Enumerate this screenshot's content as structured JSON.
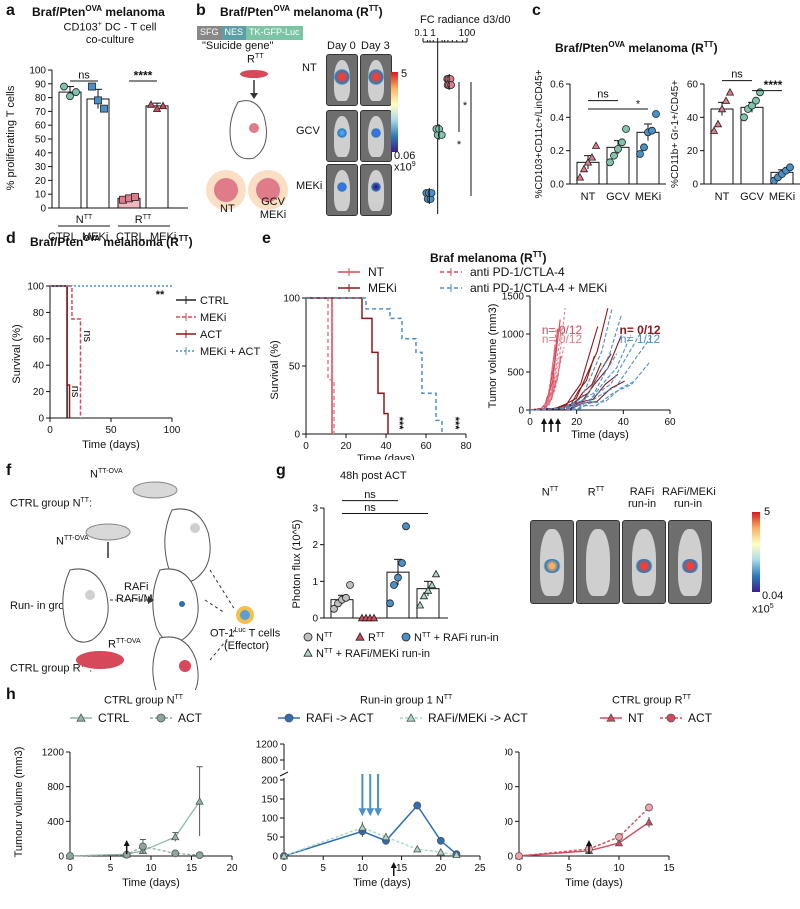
{
  "panel_labels": [
    "a",
    "b",
    "c",
    "d",
    "e",
    "f",
    "g",
    "h"
  ],
  "panel_a": {
    "title": "Braf/Pten",
    "title_sup": "OVA",
    "title_suffix": " melanoma",
    "subtitle_pre": "CD103",
    "subtitle_sup": "+",
    "subtitle_post": " DC - T cell",
    "subtitle2": "co-culture",
    "sig1": "ns",
    "sig2": "****",
    "group1": "N",
    "group1_sup": "TT",
    "group2": "R",
    "group2_sup": "TT",
    "xlabels": [
      "CTRL",
      "MEKi",
      "CTRL",
      "MEKi"
    ]
  },
  "panel_b": {
    "title": "Braf/Pten",
    "title_sup": "OVA",
    "title_suffix": " melanoma (R",
    "title_sup2": "TT",
    "title_end": ")",
    "construct": [
      "SFG",
      "NES",
      "TK-GFP-Luc"
    ],
    "suicide": "\"Suicide gene\"",
    "rtt": "R",
    "rtt_sup": "TT",
    "day0": "Day 0",
    "day3": "Day 3",
    "rows": [
      "NT",
      "GCV",
      "MEKi"
    ],
    "cbar_max": "5",
    "cbar_min": "0.06",
    "cbar_unit": "x10",
    "cbar_unit_sup": "9",
    "fc_label": "FC radiance d3/d0",
    "fc_ticks": [
      "0.1",
      "1",
      "100"
    ],
    "sig": [
      "*",
      "*"
    ],
    "mice_nt": "NT",
    "mice_gcv": "GCV",
    "mice_meki": "MEKi"
  },
  "panel_d": {
    "title": "Braf/Pten",
    "title_sup": "OVA",
    "title_suffix": " melanoma (R",
    "title_sup2": "TT",
    "title_end": ")",
    "sig": "**",
    "ns1": "ns",
    "ns2": "ns"
  },
  "panel_e": {
    "title": "Braf melanoma (R",
    "title_sup": "TT",
    "title_end": ")",
    "legend": [
      "NT",
      "anti PD-1/CTLA-4",
      "MEKi",
      "anti PD-1/CTLA-4 + MEKi"
    ],
    "sig": [
      "***",
      "***"
    ],
    "counts": [
      "n= 0/12",
      "n= 0/12",
      "n= 0/12",
      "n= 1/12"
    ]
  },
  "panel_f": {
    "ctrl_ntt": "CTRL group N",
    "ctrl_ntt_sup": "TT",
    "ctrl_ntt_end": ":",
    "ntt_ova": "N",
    "ntt_ova_sup": "TT-OVA",
    "runin": "Run- in group:",
    "rafi": "RAFi",
    "rafi_meki": "RAFi/MEKi",
    "otl_pre": "OT-1",
    "otl_sup": "Luc",
    "otl_post": " T cells",
    "effector": "(Effector)",
    "rtt_ova": "R",
    "rtt_ova_sup": "TT-OVA",
    "ctrl_rtt": "CTRL group R",
    "ctrl_rtt_sup": "TT",
    "ctrl_rtt_end": ":"
  },
  "panel_g": {
    "title": "48h post ACT",
    "sig": [
      "ns",
      "ns"
    ],
    "legend": [
      "N",
      "R",
      "N",
      "N"
    ],
    "legend_sup": [
      "TT",
      "TT",
      "TT",
      "TT"
    ],
    "legend_suffix": [
      "",
      "",
      " + RAFi run-in",
      " + RAFi/MEKi run-in"
    ],
    "img_labels": [
      "N",
      "R",
      "RAFi",
      "RAFi/MEKi"
    ],
    "img_labels_sup": [
      "TT",
      "TT",
      "",
      ""
    ],
    "img_labels2": [
      "",
      "",
      "run-in",
      "run-in"
    ],
    "cbar_max": "5",
    "cbar_min": "0.04",
    "cbar_unit": "x10",
    "cbar_unit_sup": "5"
  },
  "panel_h": {
    "titles": [
      "CTRL group N",
      "Run-in group 1 N",
      "CTRL group R"
    ],
    "titles_sup": [
      "TT",
      "TT",
      "TT"
    ],
    "legend1": [
      "CTRL",
      "ACT"
    ],
    "legend2": [
      "RAFi -> ACT",
      "RAFi/MEKi -> ACT"
    ],
    "legend3": [
      "NT",
      "ACT"
    ]
  },
  "colors": {
    "teal": "#5ba3a0",
    "pink": "#e07b8a",
    "red": "#d6485a",
    "darkred": "#8b1a1a",
    "blue": "#2f6db5",
    "lightblue": "#4a90c8",
    "gray": "#b0b0b0",
    "green": "#7fb8a4"
  },
  "chart_data": [
    {
      "id": "a",
      "type": "bar",
      "title": "Braf/PtenOVA melanoma",
      "ylabel": "% proliferating T cells",
      "ylim": [
        0,
        100
      ],
      "yticks": [
        0,
        10,
        20,
        30,
        40,
        50,
        60,
        70,
        80,
        90,
        100
      ],
      "categories": [
        "NTT CTRL",
        "NTT MEKi",
        "RTT CTRL",
        "RTT MEKi"
      ],
      "values": [
        84,
        79,
        7,
        74
      ],
      "errors": [
        4,
        7,
        1,
        2
      ],
      "points": [
        [
          88,
          81,
          84
        ],
        [
          88,
          78,
          72
        ],
        [
          6,
          7,
          8
        ],
        [
          75,
          72,
          74
        ]
      ]
    },
    {
      "id": "b",
      "type": "scatter",
      "xlabel": "FC radiance d3/d0",
      "xscale": "log",
      "xticks": [
        0.1,
        1,
        100
      ],
      "categories": [
        "NT",
        "GCV",
        "MEKi"
      ],
      "points": [
        [
          4.5,
          4.8,
          5.5,
          6,
          7.4,
          8.2
        ],
        [
          0.82,
          1.0,
          1.25,
          1.9
        ],
        [
          0.17,
          0.21,
          0.25,
          0.33,
          0.38
        ]
      ]
    },
    {
      "id": "c1",
      "type": "bar",
      "title": "Braf/PtenOVA melanoma (RTT)",
      "ylabel": "%CD103+CD11c+/LinCD45+",
      "ylim": [
        0,
        0.6
      ],
      "yticks": [
        0.0,
        0.2,
        0.4,
        0.6
      ],
      "categories": [
        "NT",
        "GCV",
        "MEKi"
      ],
      "values": [
        0.13,
        0.22,
        0.31
      ],
      "errors": [
        0.04,
        0.04,
        0.05
      ],
      "points": [
        [
          0.04,
          0.09,
          0.13,
          0.16,
          0.23
        ],
        [
          0.13,
          0.17,
          0.21,
          0.25,
          0.33
        ],
        [
          0.18,
          0.22,
          0.31,
          0.32,
          0.42
        ]
      ],
      "sig": [
        "ns",
        "*"
      ]
    },
    {
      "id": "c2",
      "type": "bar",
      "ylabel": "%CD11b+ Gr-1+/CD45+",
      "ylim": [
        0,
        60
      ],
      "yticks": [
        0,
        20,
        40,
        60
      ],
      "categories": [
        "NT",
        "GCV",
        "MEKi"
      ],
      "values": [
        45,
        46,
        7
      ],
      "errors": [
        4,
        3,
        1.5
      ],
      "points": [
        [
          32,
          36,
          45,
          50,
          55
        ],
        [
          40,
          45,
          47,
          50,
          55
        ],
        [
          2,
          4,
          6,
          8,
          10
        ]
      ],
      "sig": [
        "ns",
        "****"
      ]
    },
    {
      "id": "d",
      "type": "line",
      "xlabel": "Time (days)",
      "ylabel": "Survival (%)",
      "xlim": [
        0,
        100
      ],
      "ylim": [
        0,
        100
      ],
      "xticks": [
        0,
        50,
        100
      ],
      "yticks": [
        0,
        20,
        40,
        60,
        80,
        100
      ],
      "series": [
        {
          "name": "CTRL",
          "steps": [
            [
              0,
              100
            ],
            [
              14,
              100
            ],
            [
              14,
              0
            ]
          ]
        },
        {
          "name": "MEKi",
          "steps": [
            [
              0,
              100
            ],
            [
              18,
              100
            ],
            [
              18,
              75
            ],
            [
              25,
              75
            ],
            [
              25,
              0
            ]
          ]
        },
        {
          "name": "ACT",
          "steps": [
            [
              0,
              100
            ],
            [
              14,
              100
            ],
            [
              14,
              25
            ],
            [
              16,
              25
            ],
            [
              16,
              0
            ]
          ]
        },
        {
          "name": "MEKi + ACT",
          "steps": [
            [
              0,
              100
            ],
            [
              100,
              100
            ]
          ]
        }
      ]
    },
    {
      "id": "e1",
      "type": "line",
      "xlabel": "Time (days)",
      "ylabel": "Survival (%)",
      "xlim": [
        0,
        80
      ],
      "ylim": [
        0,
        100
      ],
      "xticks": [
        0,
        20,
        40,
        60,
        80
      ],
      "yticks": [
        0,
        50,
        100
      ],
      "series": [
        {
          "name": "NT",
          "steps": [
            [
              0,
              100
            ],
            [
              13,
              100
            ],
            [
              13,
              0
            ]
          ]
        },
        {
          "name": "anti PD-1/CTLA-4",
          "steps": [
            [
              0,
              100
            ],
            [
              11,
              100
            ],
            [
              11,
              40
            ],
            [
              14,
              40
            ],
            [
              14,
              0
            ]
          ]
        },
        {
          "name": "MEKi",
          "steps": [
            [
              0,
              100
            ],
            [
              28,
              100
            ],
            [
              28,
              85
            ],
            [
              33,
              85
            ],
            [
              33,
              60
            ],
            [
              36,
              60
            ],
            [
              36,
              30
            ],
            [
              39,
              30
            ],
            [
              39,
              15
            ],
            [
              41,
              15
            ],
            [
              41,
              0
            ]
          ]
        },
        {
          "name": "anti PD-1/CTLA-4 + MEKi",
          "steps": [
            [
              0,
              100
            ],
            [
              30,
              100
            ],
            [
              30,
              92
            ],
            [
              42,
              92
            ],
            [
              42,
              85
            ],
            [
              48,
              85
            ],
            [
              48,
              70
            ],
            [
              55,
              70
            ],
            [
              55,
              60
            ],
            [
              58,
              60
            ],
            [
              58,
              30
            ],
            [
              65,
              30
            ],
            [
              65,
              10
            ],
            [
              68,
              10
            ],
            [
              68,
              0
            ]
          ]
        }
      ]
    },
    {
      "id": "e2",
      "type": "line",
      "xlabel": "Time (days)",
      "ylabel": "Tumor volume (mm3)",
      "xlim": [
        0,
        60
      ],
      "ylim": [
        0,
        1500
      ],
      "xticks": [
        0,
        20,
        40,
        60
      ],
      "yticks": [
        0,
        500,
        1000,
        1500
      ],
      "treatment_days": [
        6,
        9,
        12
      ]
    },
    {
      "id": "g",
      "type": "bar",
      "ylabel": "Photon flux (10^5)",
      "ylim": [
        0,
        3
      ],
      "yticks": [
        0,
        1,
        2,
        3
      ],
      "categories": [
        "NTT",
        "RTT",
        "NTT + RAFi run-in",
        "NTT + RAFi/MEKi run-in"
      ],
      "values": [
        0.5,
        0.0,
        1.25,
        0.8
      ],
      "errors": [
        0.12,
        0.0,
        0.35,
        0.2
      ],
      "points": [
        [
          0.25,
          0.4,
          0.5,
          0.55,
          0.9
        ],
        [
          0.0,
          0.0,
          0.0,
          0.0
        ],
        [
          0.4,
          0.9,
          1.1,
          1.5,
          2.5
        ],
        [
          0.35,
          0.6,
          0.75,
          0.9,
          1.2
        ]
      ],
      "sig": [
        "ns",
        "ns"
      ]
    },
    {
      "id": "h1",
      "type": "line",
      "title": "CTRL group NTT",
      "xlabel": "Time (days)",
      "ylabel": "Tumour volume (mm3)",
      "xlim": [
        0,
        20
      ],
      "ylim": [
        0,
        1200
      ],
      "xticks": [
        0,
        5,
        10,
        15,
        20
      ],
      "yticks": [
        0,
        400,
        800,
        1200
      ],
      "series": [
        {
          "name": "CTRL",
          "x": [
            0,
            7,
            9,
            13,
            16
          ],
          "y": [
            0,
            20,
            60,
            220,
            630
          ],
          "err": [
            0,
            5,
            20,
            50,
            400
          ]
        },
        {
          "name": "ACT",
          "x": [
            0,
            7,
            9,
            13,
            16
          ],
          "y": [
            0,
            15,
            110,
            30,
            10
          ],
          "err": [
            0,
            5,
            80,
            15,
            5
          ]
        }
      ],
      "arrow_day": 7
    },
    {
      "id": "h2",
      "type": "line",
      "title": "Run-in group 1 NTT",
      "xlabel": "Time (days)",
      "ylabel": "",
      "xlim": [
        0,
        25
      ],
      "ylim": [
        0,
        1200
      ],
      "xticks": [
        0,
        5,
        10,
        15,
        20,
        25
      ],
      "yticks": [
        0,
        50,
        100,
        150,
        200,
        1200
      ],
      "broken_axis": true,
      "series": [
        {
          "name": "RAFi -> ACT",
          "x": [
            0,
            10,
            13,
            17,
            20,
            22
          ],
          "y": [
            0,
            65,
            40,
            133,
            40,
            5
          ],
          "err": [
            0,
            15,
            10,
            10,
            8,
            2
          ]
        },
        {
          "name": "RAFi/MEKi -> ACT",
          "x": [
            0,
            10,
            13,
            17,
            20,
            22
          ],
          "y": [
            0,
            75,
            50,
            18,
            10,
            3
          ],
          "err": [
            0,
            15,
            10,
            6,
            4,
            1
          ]
        }
      ],
      "arrow_days": [
        10,
        11,
        12
      ],
      "act_day": 14
    },
    {
      "id": "h3",
      "type": "line",
      "title": "CTRL group RTT",
      "xlabel": "Time (days)",
      "ylabel": "",
      "xlim": [
        0,
        15
      ],
      "ylim": [
        0,
        1200
      ],
      "xticks": [
        0,
        5,
        10,
        15
      ],
      "yticks": [
        0,
        400,
        800,
        1200
      ],
      "series": [
        {
          "name": "NT",
          "x": [
            0,
            7,
            10,
            13
          ],
          "y": [
            0,
            60,
            150,
            390
          ],
          "err": [
            0,
            10,
            20,
            60
          ]
        },
        {
          "name": "ACT",
          "x": [
            0,
            7,
            10,
            13
          ],
          "y": [
            0,
            80,
            220,
            560
          ],
          "err": [
            0,
            10,
            25,
            45
          ]
        }
      ],
      "arrow_day": 7
    }
  ]
}
